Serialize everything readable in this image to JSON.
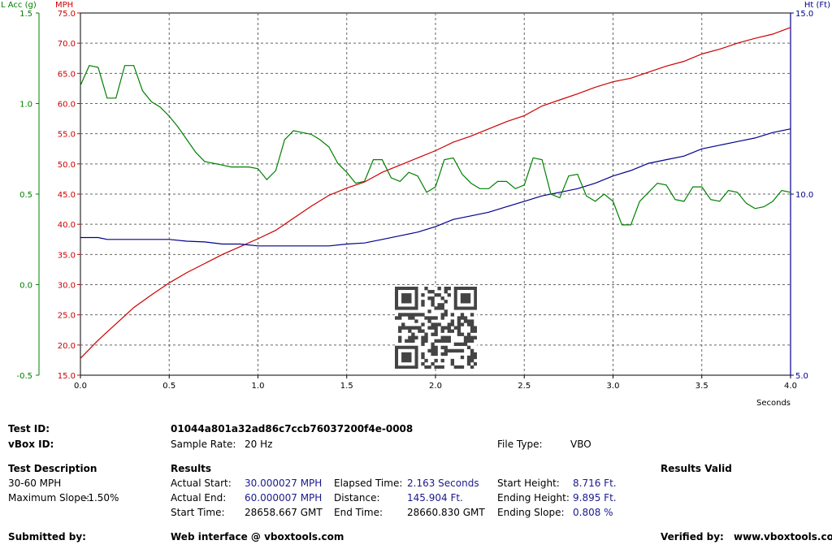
{
  "chart_data": {
    "type": "line",
    "xlabel": "Seconds",
    "xlim": [
      0,
      4
    ],
    "x_ticks": [
      "0.0",
      "0.5",
      "1.0",
      "1.5",
      "2.0",
      "2.5",
      "3.0",
      "3.5",
      "4.0"
    ],
    "axes": {
      "left_outer": {
        "label": "L Acc (g)",
        "color": "#008000",
        "lim": [
          -0.5,
          1.5
        ],
        "ticks": [
          "1.5",
          "1.0",
          "0.5",
          "0.0",
          "-0.5"
        ]
      },
      "left_inner": {
        "label": "MPH",
        "color": "#cc0000",
        "lim": [
          15,
          75
        ],
        "ticks": [
          "75.0",
          "70.0",
          "65.0",
          "60.0",
          "55.0",
          "50.0",
          "45.0",
          "40.0",
          "35.0",
          "30.0",
          "25.0",
          "20.0",
          "15.0"
        ]
      },
      "right": {
        "label": "Ht (Ft)",
        "color": "#00008b",
        "lim": [
          5,
          15
        ],
        "ticks": [
          "15.0",
          "10.0",
          "5.0"
        ]
      }
    },
    "grid": true,
    "series": [
      {
        "axis": "left_inner",
        "color": "#cc0000",
        "x": [
          0,
          0.1,
          0.2,
          0.3,
          0.4,
          0.5,
          0.6,
          0.7,
          0.8,
          0.9,
          1.0,
          1.1,
          1.2,
          1.3,
          1.4,
          1.5,
          1.6,
          1.7,
          1.8,
          1.9,
          2.0,
          2.1,
          2.2,
          2.3,
          2.4,
          2.5,
          2.6,
          2.7,
          2.8,
          2.9,
          3.0,
          3.1,
          3.2,
          3.3,
          3.4,
          3.5,
          3.6,
          3.7,
          3.8,
          3.9,
          4.0
        ],
        "values": [
          17.8,
          20.8,
          23.5,
          26.2,
          28.3,
          30.3,
          32.0,
          33.5,
          35.0,
          36.3,
          37.6,
          39.0,
          41.0,
          43.0,
          44.8,
          46.0,
          47.0,
          48.6,
          49.8,
          51.0,
          52.2,
          53.6,
          54.6,
          55.8,
          57.0,
          58.0,
          59.6,
          60.6,
          61.6,
          62.7,
          63.6,
          64.2,
          65.2,
          66.2,
          67.0,
          68.2,
          69.0,
          70.0,
          70.8,
          71.5,
          72.6
        ]
      },
      {
        "axis": "right",
        "color": "#00008b",
        "x": [
          0,
          0.1,
          0.15,
          0.3,
          0.4,
          0.5,
          0.6,
          0.7,
          0.8,
          0.9,
          1.0,
          1.1,
          1.2,
          1.3,
          1.4,
          1.5,
          1.6,
          1.7,
          1.8,
          1.9,
          2.0,
          2.1,
          2.2,
          2.3,
          2.4,
          2.5,
          2.6,
          2.7,
          2.8,
          2.9,
          3.0,
          3.1,
          3.2,
          3.3,
          3.4,
          3.5,
          3.6,
          3.7,
          3.8,
          3.9,
          4.0
        ],
        "values": [
          8.8,
          8.8,
          8.75,
          8.75,
          8.75,
          8.75,
          8.7,
          8.68,
          8.62,
          8.62,
          8.57,
          8.57,
          8.57,
          8.57,
          8.57,
          8.62,
          8.65,
          8.75,
          8.85,
          8.95,
          9.1,
          9.3,
          9.4,
          9.5,
          9.65,
          9.8,
          9.95,
          10.05,
          10.15,
          10.3,
          10.5,
          10.65,
          10.85,
          10.95,
          11.05,
          11.25,
          11.35,
          11.45,
          11.55,
          11.7,
          11.8
        ]
      },
      {
        "axis": "left_outer",
        "color": "#008000",
        "x": [
          0,
          0.05,
          0.1,
          0.15,
          0.2,
          0.25,
          0.3,
          0.35,
          0.4,
          0.45,
          0.5,
          0.55,
          0.6,
          0.65,
          0.7,
          0.75,
          0.8,
          0.85,
          0.9,
          0.95,
          1.0,
          1.05,
          1.1,
          1.15,
          1.2,
          1.25,
          1.3,
          1.35,
          1.4,
          1.45,
          1.5,
          1.55,
          1.6,
          1.65,
          1.7,
          1.75,
          1.8,
          1.85,
          1.9,
          1.95,
          2.0,
          2.05,
          2.1,
          2.15,
          2.2,
          2.25,
          2.3,
          2.35,
          2.4,
          2.45,
          2.5,
          2.55,
          2.6,
          2.65,
          2.7,
          2.75,
          2.8,
          2.85,
          2.9,
          2.95,
          3.0,
          3.05,
          3.1,
          3.15,
          3.2,
          3.25,
          3.3,
          3.35,
          3.4,
          3.45,
          3.5,
          3.55,
          3.6,
          3.65,
          3.7,
          3.75,
          3.8,
          3.85,
          3.9,
          3.95,
          4.0
        ],
        "values": [
          1.1,
          1.21,
          1.2,
          1.03,
          1.03,
          1.21,
          1.21,
          1.07,
          1.01,
          0.98,
          0.93,
          0.87,
          0.8,
          0.73,
          0.68,
          0.67,
          0.66,
          0.65,
          0.65,
          0.65,
          0.64,
          0.58,
          0.63,
          0.8,
          0.85,
          0.84,
          0.83,
          0.8,
          0.76,
          0.67,
          0.62,
          0.56,
          0.57,
          0.69,
          0.69,
          0.59,
          0.57,
          0.62,
          0.6,
          0.51,
          0.54,
          0.69,
          0.7,
          0.61,
          0.56,
          0.53,
          0.53,
          0.57,
          0.57,
          0.53,
          0.55,
          0.7,
          0.69,
          0.5,
          0.48,
          0.6,
          0.61,
          0.49,
          0.46,
          0.5,
          0.46,
          0.33,
          0.33,
          0.46,
          0.51,
          0.56,
          0.55,
          0.47,
          0.46,
          0.54,
          0.54,
          0.47,
          0.46,
          0.52,
          0.51,
          0.45,
          0.42,
          0.43,
          0.46,
          0.52,
          0.51
        ]
      }
    ]
  },
  "header": {
    "test_id_label": "Test ID:",
    "test_id_value": "01044a801a32ad86c7ccb76037200f4e-0008",
    "vbox_id_label": "vBox ID:",
    "sample_rate_label": "Sample Rate:",
    "sample_rate_value": "20 Hz",
    "file_type_label": "File Type:",
    "file_type_value": "VBO"
  },
  "test_description": {
    "title": "Test Description",
    "line1": "30-60 MPH",
    "slope_label": "Maximum Slope:",
    "slope_value": "-1.50%"
  },
  "results": {
    "title": "Results",
    "valid": "Results Valid",
    "actual_start_label": "Actual Start:",
    "actual_start_value": "30.000027 MPH",
    "actual_end_label": "Actual End:",
    "actual_end_value": "60.000007 MPH",
    "start_time_label": "Start Time:",
    "start_time_value": "28658.667 GMT",
    "elapsed_label": "Elapsed Time:",
    "elapsed_value": "2.163 Seconds",
    "distance_label": "Distance:",
    "distance_value": "145.904 Ft.",
    "end_time_label": "End Time:",
    "end_time_value": "28660.830 GMT",
    "start_height_label": "Start Height:",
    "start_height_value": "8.716 Ft.",
    "ending_height_label": "Ending Height:",
    "ending_height_value": "9.895 Ft.",
    "ending_slope_label": "Ending Slope:",
    "ending_slope_value": "0.808 %"
  },
  "footer": {
    "submitted_label": "Submitted by:",
    "web_interface": "Web interface @ vboxtools.com",
    "verified_label": "Verified by:",
    "verified_value": "www.vboxtools.com"
  }
}
